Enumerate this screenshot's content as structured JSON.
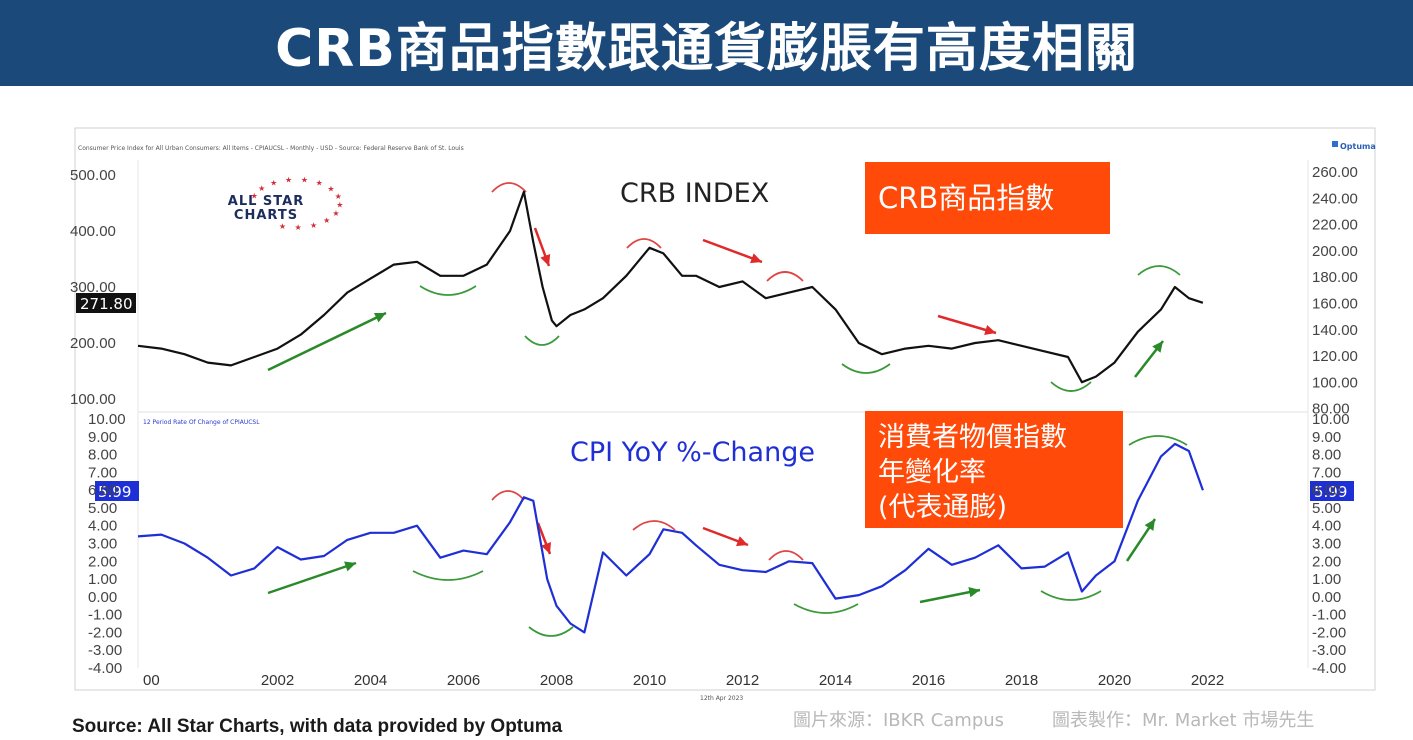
{
  "header": {
    "title": "CRB商品指數跟通貨膨脹有高度相關"
  },
  "footer": {
    "source": "Source: All Star Charts, with data provided by Optuma",
    "credit_1": "圖片來源：IBKR Campus",
    "credit_2": "圖表製作：Mr. Market 市場先生"
  },
  "chart_meta": {
    "top_caption": "Consumer Price Index for All Urban Consumers: All Items - CPIAUCSL - Monthly - USD - Source: Federal Reserve Bank of St. Louis",
    "bottom_caption": "12 Period Rate Of Change of CPIAUCSL",
    "date_stamp": "12th Apr 2023",
    "brand": "Optuma",
    "logo_line1": "ALL STAR",
    "logo_line2": "CHARTS",
    "orange_box_1": "CRB商品指數",
    "orange_box_2_lines": [
      "消費者物價指數",
      "年變化率",
      "(代表通膨)"
    ],
    "colors": {
      "crb_line": "#111111",
      "cpi_line": "#1f2fd6",
      "label_box": "#ff4a0a",
      "header_bg": "#1b4a7a",
      "up_arrow": "#2a8a2a",
      "down_arrow": "#e02a2a",
      "peak_arc": "#e04545",
      "trough_arc": "#3a9a3a"
    }
  },
  "chart_data": [
    {
      "type": "line",
      "title": "CRB INDEX",
      "left_axis_ticks": [
        "500.00",
        "400.00",
        "300.00",
        "200.00",
        "100.00"
      ],
      "right_axis_ticks": [
        "260.00",
        "240.00",
        "220.00",
        "200.00",
        "180.00",
        "160.00",
        "140.00",
        "120.00",
        "100.00",
        "80.00"
      ],
      "last_value_label": "271.80",
      "x": [
        2000,
        2000.5,
        2001,
        2001.5,
        2002,
        2002.5,
        2003,
        2003.5,
        2004,
        2004.5,
        2005,
        2005.5,
        2006,
        2006.5,
        2007,
        2007.5,
        2008,
        2008.3,
        2008.5,
        2008.7,
        2008.9,
        2009,
        2009.3,
        2009.6,
        2010,
        2010.5,
        2011,
        2011.3,
        2011.7,
        2012,
        2012.5,
        2013,
        2013.5,
        2014,
        2014.5,
        2015,
        2015.5,
        2016,
        2016.5,
        2017,
        2017.5,
        2018,
        2018.5,
        2019,
        2019.5,
        2020,
        2020.3,
        2020.6,
        2021,
        2021.5,
        2022,
        2022.3,
        2022.6,
        2022.9
      ],
      "series": [
        {
          "values": [
            195,
            190,
            180,
            165,
            160,
            175,
            190,
            215,
            250,
            290,
            315,
            340,
            345,
            320,
            320,
            340,
            400,
            470,
            380,
            300,
            240,
            230,
            250,
            260,
            280,
            320,
            370,
            360,
            320,
            320,
            300,
            310,
            280,
            290,
            300,
            260,
            200,
            180,
            190,
            195,
            190,
            200,
            205,
            195,
            185,
            175,
            130,
            140,
            165,
            220,
            260,
            300,
            280,
            271.8
          ]
        }
      ]
    },
    {
      "type": "line",
      "title": "CPI YoY %-Change",
      "left_axis_ticks": [
        "10.00",
        "9.00",
        "8.00",
        "7.00",
        "6.00",
        "5.00",
        "4.00",
        "3.00",
        "2.00",
        "1.00",
        "0.00",
        "-1.00",
        "-2.00",
        "-3.00",
        "-4.00"
      ],
      "right_axis_ticks": [
        "10.00",
        "9.00",
        "8.00",
        "7.00",
        "6.00",
        "5.00",
        "4.00",
        "3.00",
        "2.00",
        "1.00",
        "0.00",
        "-1.00",
        "-2.00",
        "-3.00",
        "-4.00"
      ],
      "last_value_label": "5.99",
      "x_tick_labels": [
        "00",
        "2002",
        "2004",
        "2006",
        "2008",
        "2010",
        "2012",
        "2014",
        "2016",
        "2018",
        "2020",
        "2022"
      ],
      "x": [
        2000,
        2000.5,
        2001,
        2001.5,
        2002,
        2002.5,
        2003,
        2003.5,
        2004,
        2004.5,
        2005,
        2005.5,
        2006,
        2006.5,
        2007,
        2007.5,
        2008,
        2008.3,
        2008.5,
        2008.8,
        2009,
        2009.3,
        2009.6,
        2010,
        2010.5,
        2011,
        2011.3,
        2011.7,
        2012,
        2012.5,
        2013,
        2013.5,
        2014,
        2014.5,
        2015,
        2015.5,
        2016,
        2016.5,
        2017,
        2017.5,
        2018,
        2018.5,
        2019,
        2019.5,
        2020,
        2020.3,
        2020.6,
        2021,
        2021.5,
        2022,
        2022.3,
        2022.6,
        2022.9
      ],
      "series": [
        {
          "values": [
            3.4,
            3.5,
            3.0,
            2.2,
            1.2,
            1.6,
            2.8,
            2.1,
            2.3,
            3.2,
            3.6,
            3.6,
            4.0,
            2.2,
            2.6,
            2.4,
            4.2,
            5.6,
            5.4,
            1.0,
            -0.5,
            -1.5,
            -2.0,
            2.5,
            1.2,
            2.4,
            3.8,
            3.6,
            2.9,
            1.8,
            1.5,
            1.4,
            2.0,
            1.9,
            -0.1,
            0.1,
            0.6,
            1.5,
            2.7,
            1.8,
            2.2,
            2.9,
            1.6,
            1.7,
            2.5,
            0.3,
            1.2,
            2.0,
            5.4,
            7.9,
            8.6,
            8.2,
            5.99
          ]
        }
      ]
    }
  ]
}
